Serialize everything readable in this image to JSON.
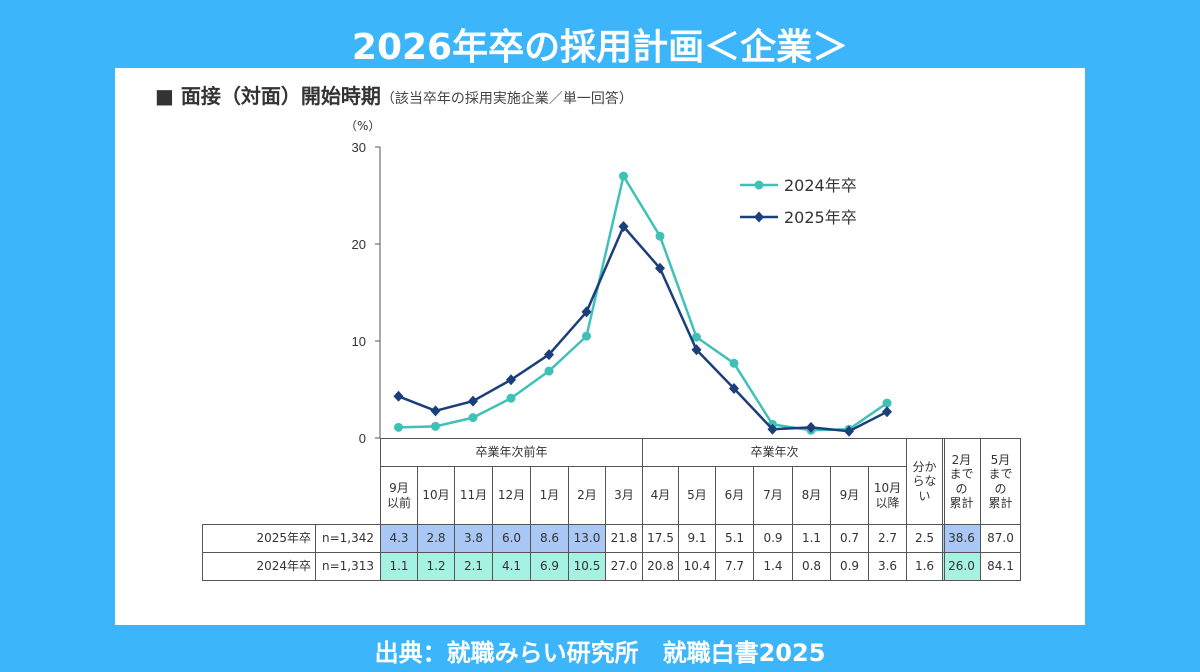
{
  "title": "2026年卒の採用計画＜企業＞",
  "subtitle": "面接（対面）開始時期",
  "subtitle_marker": "■",
  "subtitle_note": "（該当卒年の採用実施企業／単一回答）",
  "footer": "出典：就職みらい研究所　就職白書2025",
  "colors": {
    "background": "#3db5fb",
    "series_2024": "#40c1b8",
    "series_2025": "#1a3f7a",
    "highlight_2025": "#a9c8f5",
    "highlight_2024": "#a6f2e2"
  },
  "chart_data": {
    "type": "line",
    "ylabel": "（%）",
    "ylim": [
      0,
      30
    ],
    "yticks": [
      0,
      10,
      20,
      30
    ],
    "categories": [
      "9月以前",
      "10月",
      "11月",
      "12月",
      "1月",
      "2月",
      "3月",
      "4月",
      "5月",
      "6月",
      "7月",
      "8月",
      "9月",
      "10月以降"
    ],
    "legend_position": "top-right",
    "series": [
      {
        "name": "2024年卒",
        "marker": "circle",
        "values": [
          1.1,
          1.2,
          2.1,
          4.1,
          6.9,
          10.5,
          27.0,
          20.8,
          10.4,
          7.7,
          1.4,
          0.8,
          0.9,
          3.6
        ]
      },
      {
        "name": "2025年卒",
        "marker": "diamond",
        "values": [
          4.3,
          2.8,
          3.8,
          6.0,
          8.6,
          13.0,
          21.8,
          17.5,
          9.1,
          5.1,
          0.9,
          1.1,
          0.7,
          2.7
        ]
      }
    ]
  },
  "table": {
    "groups": [
      {
        "label": "卒業年次前年",
        "span": 7
      },
      {
        "label": "卒業年次",
        "span": 7
      }
    ],
    "columns": [
      "9月\n以前",
      "10月",
      "11月",
      "12月",
      "1月",
      "2月",
      "3月",
      "4月",
      "5月",
      "6月",
      "7月",
      "8月",
      "9月",
      "10月\n以降",
      "分か\nらな\nい",
      "2月\nまで\nの\n累計",
      "5月\nまで\nの\n累計"
    ],
    "rows": [
      {
        "label": "2025年卒",
        "n": "n=1,342",
        "values": [
          "4.3",
          "2.8",
          "3.8",
          "6.0",
          "8.6",
          "13.0",
          "21.8",
          "17.5",
          "9.1",
          "5.1",
          "0.9",
          "1.1",
          "0.7",
          "2.7",
          "2.5",
          "38.6",
          "87.0"
        ]
      },
      {
        "label": "2024年卒",
        "n": "n=1,313",
        "values": [
          "1.1",
          "1.2",
          "2.1",
          "4.1",
          "6.9",
          "10.5",
          "27.0",
          "20.8",
          "10.4",
          "7.7",
          "1.4",
          "0.8",
          "0.9",
          "3.6",
          "1.6",
          "26.0",
          "84.1"
        ]
      }
    ]
  }
}
